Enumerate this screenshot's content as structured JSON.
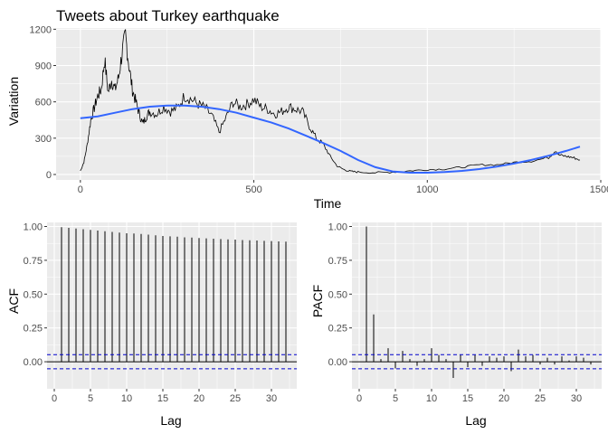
{
  "chart_data": [
    {
      "type": "line",
      "title": "Tweets about Turkey earthquake",
      "xlabel": "Time",
      "ylabel": "Variation",
      "xlim": [
        -70,
        1500
      ],
      "ylim": [
        -45,
        1210
      ],
      "xticks": [
        0,
        500,
        1000,
        1500
      ],
      "yticks": [
        0,
        300,
        600,
        900,
        1200
      ],
      "grid": true,
      "raw_series": {
        "x": [
          0,
          10,
          20,
          30,
          40,
          50,
          60,
          70,
          80,
          90,
          100,
          110,
          120,
          130,
          140,
          150,
          160,
          170,
          180,
          190,
          200,
          220,
          240,
          260,
          280,
          300,
          320,
          340,
          360,
          380,
          400,
          420,
          440,
          460,
          480,
          500,
          520,
          540,
          560,
          580,
          600,
          620,
          640,
          660,
          680,
          700,
          720,
          740,
          760,
          780,
          800,
          850,
          900,
          950,
          1000,
          1050,
          1100,
          1150,
          1200,
          1250,
          1300,
          1350,
          1370,
          1380,
          1400,
          1420,
          1440
        ],
        "y": [
          30,
          100,
          250,
          450,
          550,
          650,
          700,
          950,
          680,
          780,
          700,
          800,
          1000,
          1150,
          900,
          700,
          600,
          500,
          420,
          480,
          520,
          500,
          560,
          520,
          550,
          650,
          620,
          580,
          550,
          480,
          350,
          470,
          600,
          560,
          580,
          620,
          560,
          540,
          500,
          520,
          560,
          540,
          520,
          400,
          300,
          250,
          150,
          70,
          40,
          25,
          20,
          15,
          20,
          30,
          40,
          45,
          60,
          80,
          80,
          100,
          110,
          140,
          200,
          160,
          150,
          140,
          120
        ]
      },
      "smooth_series": {
        "x": [
          0,
          50,
          100,
          150,
          200,
          250,
          300,
          350,
          400,
          450,
          500,
          550,
          600,
          650,
          700,
          750,
          800,
          850,
          900,
          950,
          1000,
          1050,
          1100,
          1150,
          1200,
          1250,
          1300,
          1350,
          1400,
          1440
        ],
        "y": [
          465,
          480,
          510,
          540,
          560,
          570,
          570,
          560,
          540,
          510,
          470,
          430,
          380,
          320,
          260,
          195,
          120,
          60,
          25,
          15,
          15,
          20,
          30,
          45,
          65,
          90,
          120,
          155,
          195,
          230
        ],
        "color": "#3366ff"
      }
    },
    {
      "type": "bar",
      "xlabel": "Lag",
      "ylabel": "ACF",
      "xlim": [
        -1,
        33.5
      ],
      "ylim": [
        -0.2,
        1.03
      ],
      "xticks": [
        0,
        5,
        10,
        15,
        20,
        25,
        30
      ],
      "yticks": [
        0.0,
        0.25,
        0.5,
        0.75,
        1.0
      ],
      "ytick_labels": [
        "0.00",
        "0.25",
        "0.50",
        "0.75",
        "1.00"
      ],
      "lags": [
        1,
        2,
        3,
        4,
        5,
        6,
        7,
        8,
        9,
        10,
        11,
        12,
        13,
        14,
        15,
        16,
        17,
        18,
        19,
        20,
        21,
        22,
        23,
        24,
        25,
        26,
        27,
        28,
        29,
        30,
        31,
        32
      ],
      "values": [
        0.995,
        0.99,
        0.985,
        0.98,
        0.975,
        0.97,
        0.965,
        0.96,
        0.955,
        0.95,
        0.948,
        0.945,
        0.94,
        0.935,
        0.93,
        0.927,
        0.925,
        0.92,
        0.918,
        0.915,
        0.912,
        0.91,
        0.907,
        0.905,
        0.903,
        0.9,
        0.898,
        0.896,
        0.894,
        0.892,
        0.89,
        0.888
      ],
      "conf_limit": 0.052,
      "conf_color": "#0000cc"
    },
    {
      "type": "bar",
      "xlabel": "Lag",
      "ylabel": "PACF",
      "xlim": [
        -1,
        33.5
      ],
      "ylim": [
        -0.2,
        1.03
      ],
      "xticks": [
        0,
        5,
        10,
        15,
        20,
        25,
        30
      ],
      "yticks": [
        0.0,
        0.25,
        0.5,
        0.75,
        1.0
      ],
      "ytick_labels": [
        "0.00",
        "0.25",
        "0.50",
        "0.75",
        "1.00"
      ],
      "lags": [
        1,
        2,
        3,
        4,
        5,
        6,
        7,
        8,
        9,
        10,
        11,
        12,
        13,
        14,
        15,
        16,
        17,
        18,
        19,
        20,
        21,
        22,
        23,
        24,
        25,
        26,
        27,
        28,
        29,
        30,
        31,
        32
      ],
      "values": [
        1.0,
        0.35,
        0.02,
        0.1,
        -0.05,
        0.08,
        0.02,
        -0.03,
        0.02,
        0.1,
        0.05,
        0.02,
        -0.12,
        0.05,
        -0.04,
        0.05,
        -0.03,
        0.04,
        0.03,
        0.04,
        -0.07,
        0.09,
        0.04,
        0.05,
        -0.02,
        0.03,
        -0.02,
        0.04,
        0.01,
        0.04,
        0.03,
        -0.02
      ],
      "conf_limit": 0.052,
      "conf_color": "#0000cc"
    }
  ]
}
